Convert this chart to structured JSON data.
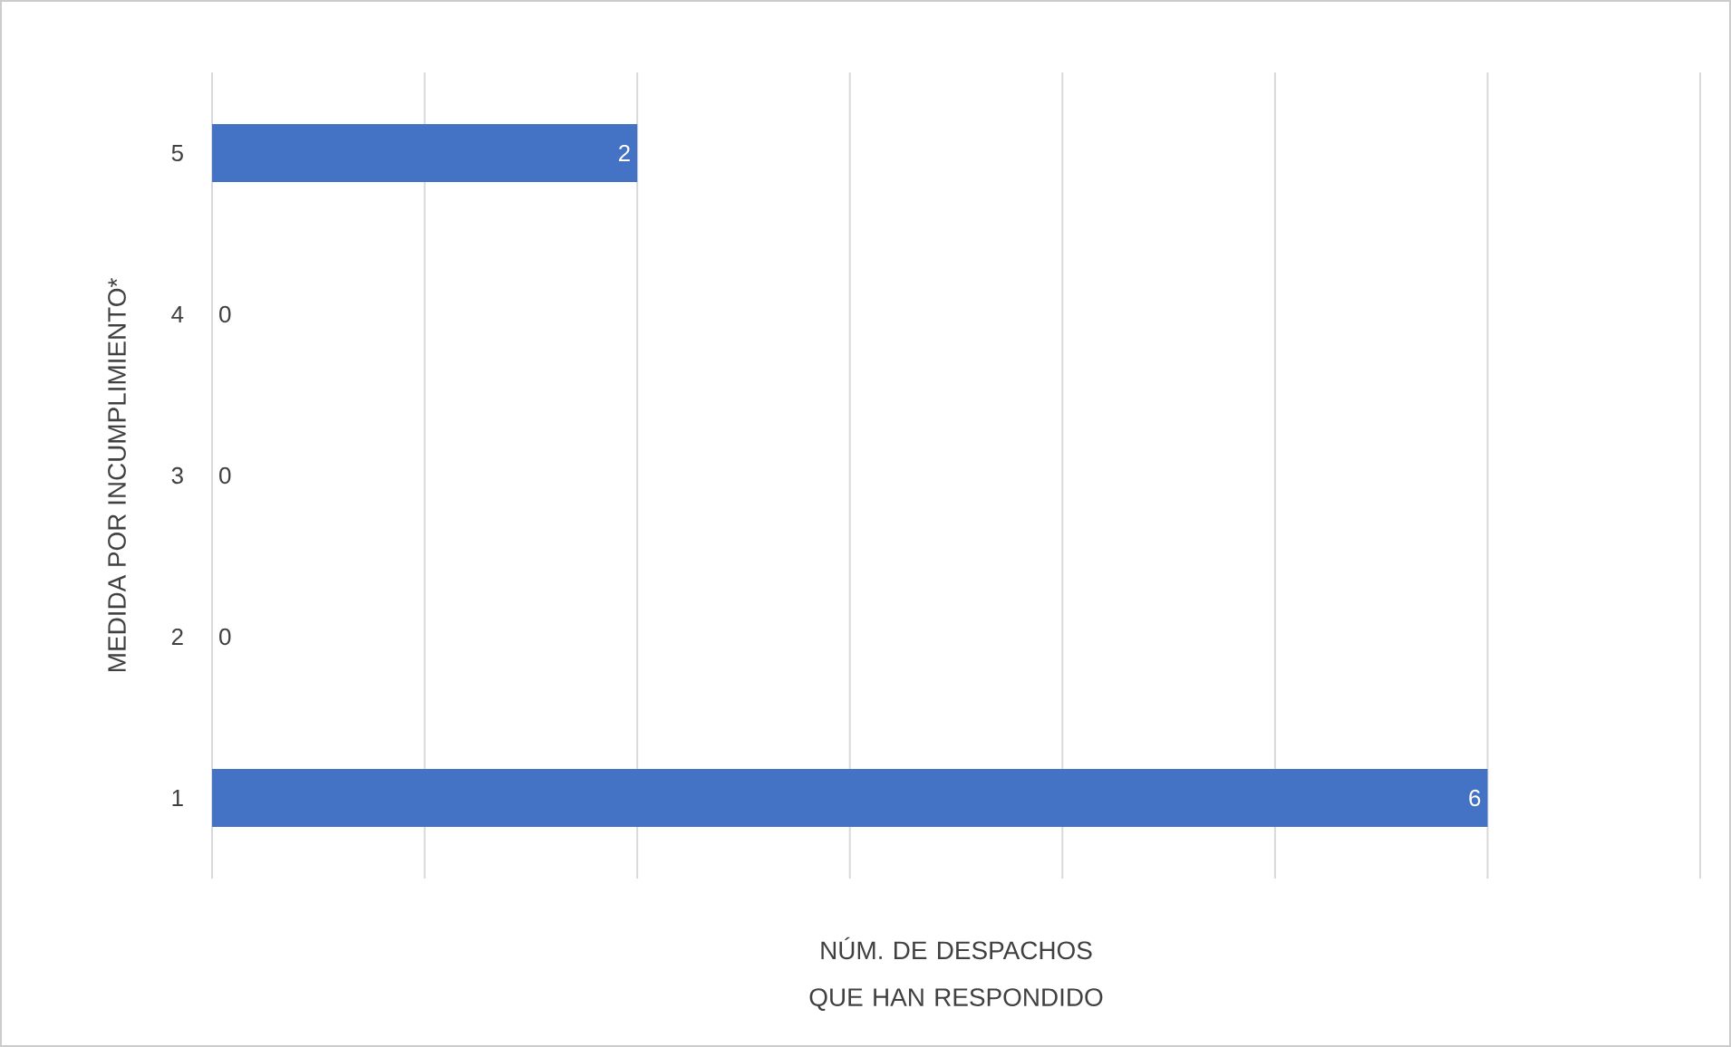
{
  "chart_data": {
    "type": "bar",
    "orientation": "horizontal",
    "categories": [
      "5",
      "4",
      "3",
      "2",
      "1"
    ],
    "values": [
      2,
      0,
      0,
      0,
      6
    ],
    "color": "#4472c4",
    "xlabel": "NÚM. DE DESPACHOS QUE HAN RESPONDIDO",
    "ylabel": "MEDIDA POR INCUMPLIMIENTO*",
    "xlim": [
      0,
      7
    ],
    "xticks": [
      {
        "value": 0,
        "label": null
      },
      {
        "value": 1,
        "label": null
      },
      {
        "value": 2,
        "label": null
      },
      {
        "value": 3,
        "label": null
      },
      {
        "value": 4,
        "label": null
      },
      {
        "value": 5,
        "label": null
      },
      {
        "value": 6,
        "label": null
      },
      {
        "value": 7,
        "label": null
      }
    ],
    "grid": "x",
    "tick_labels": "y",
    "data_labels": true
  }
}
